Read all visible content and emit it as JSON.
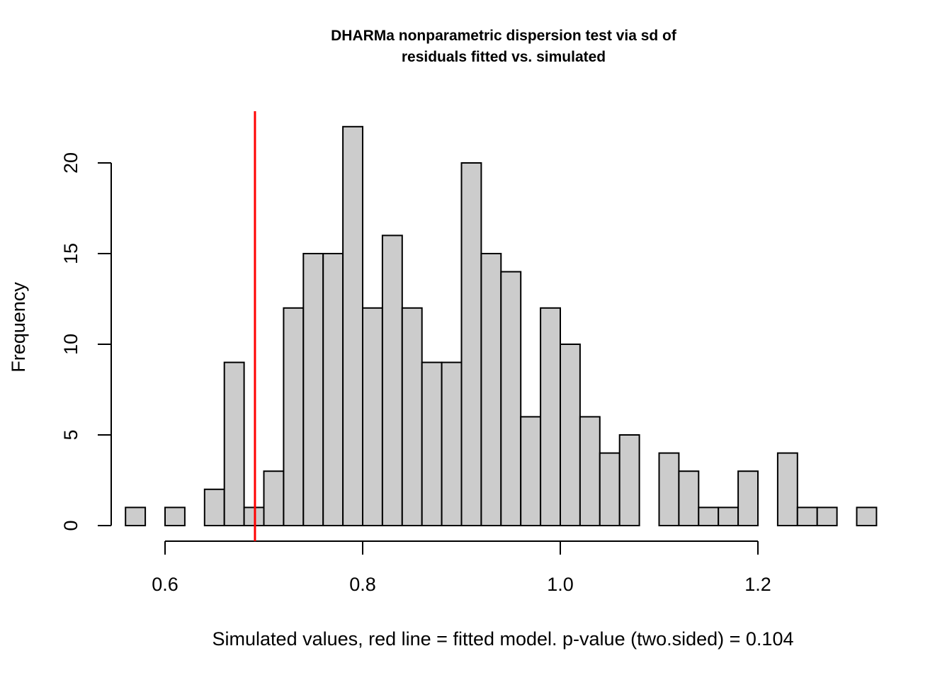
{
  "chart_data": {
    "type": "bar",
    "title_line1": "DHARMa nonparametric dispersion test via sd of",
    "title_line2": "residuals fitted vs. simulated",
    "xlabel": "Simulated values, red line = fitted model. p-value (two.sided) = 0.104",
    "ylabel": "Frequency",
    "bin_start": 0.56,
    "bin_width": 0.02,
    "values": [
      1,
      0,
      1,
      0,
      2,
      9,
      1,
      3,
      12,
      15,
      15,
      22,
      12,
      16,
      12,
      9,
      9,
      20,
      15,
      14,
      6,
      12,
      10,
      6,
      4,
      5,
      0,
      4,
      3,
      1,
      1,
      3,
      0,
      4,
      1,
      1,
      0,
      1
    ],
    "xticks": [
      "0.6",
      "0.8",
      "1.0",
      "1.2"
    ],
    "xtick_values": [
      0.6,
      0.8,
      1.0,
      1.2
    ],
    "yticks": [
      "0",
      "5",
      "10",
      "15",
      "20"
    ],
    "ytick_values": [
      0,
      5,
      10,
      15,
      20
    ],
    "fitted_value": 0.691,
    "bar_color": "#cccccc",
    "line_color": "#ff0000",
    "grid": false
  }
}
